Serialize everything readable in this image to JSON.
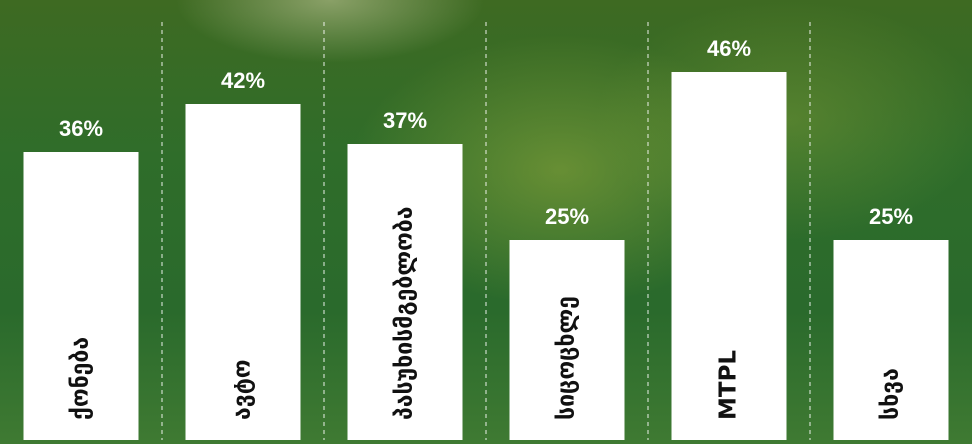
{
  "chart_data": {
    "type": "bar",
    "categories": [
      "ქონება",
      "ავტო",
      "პასუხისმგებლობა",
      "სიცოცხლე",
      "MTPL",
      "სხვა"
    ],
    "values": [
      36,
      42,
      37,
      25,
      46,
      25
    ],
    "value_labels": [
      "36%",
      "42%",
      "37%",
      "25%",
      "46%",
      "25%"
    ],
    "unit": "%",
    "ylim": [
      0,
      50
    ],
    "grid": false,
    "legend": "none",
    "bar_color": "#ffffff",
    "label_color": "#111111",
    "value_label_color": "#ffffff"
  }
}
